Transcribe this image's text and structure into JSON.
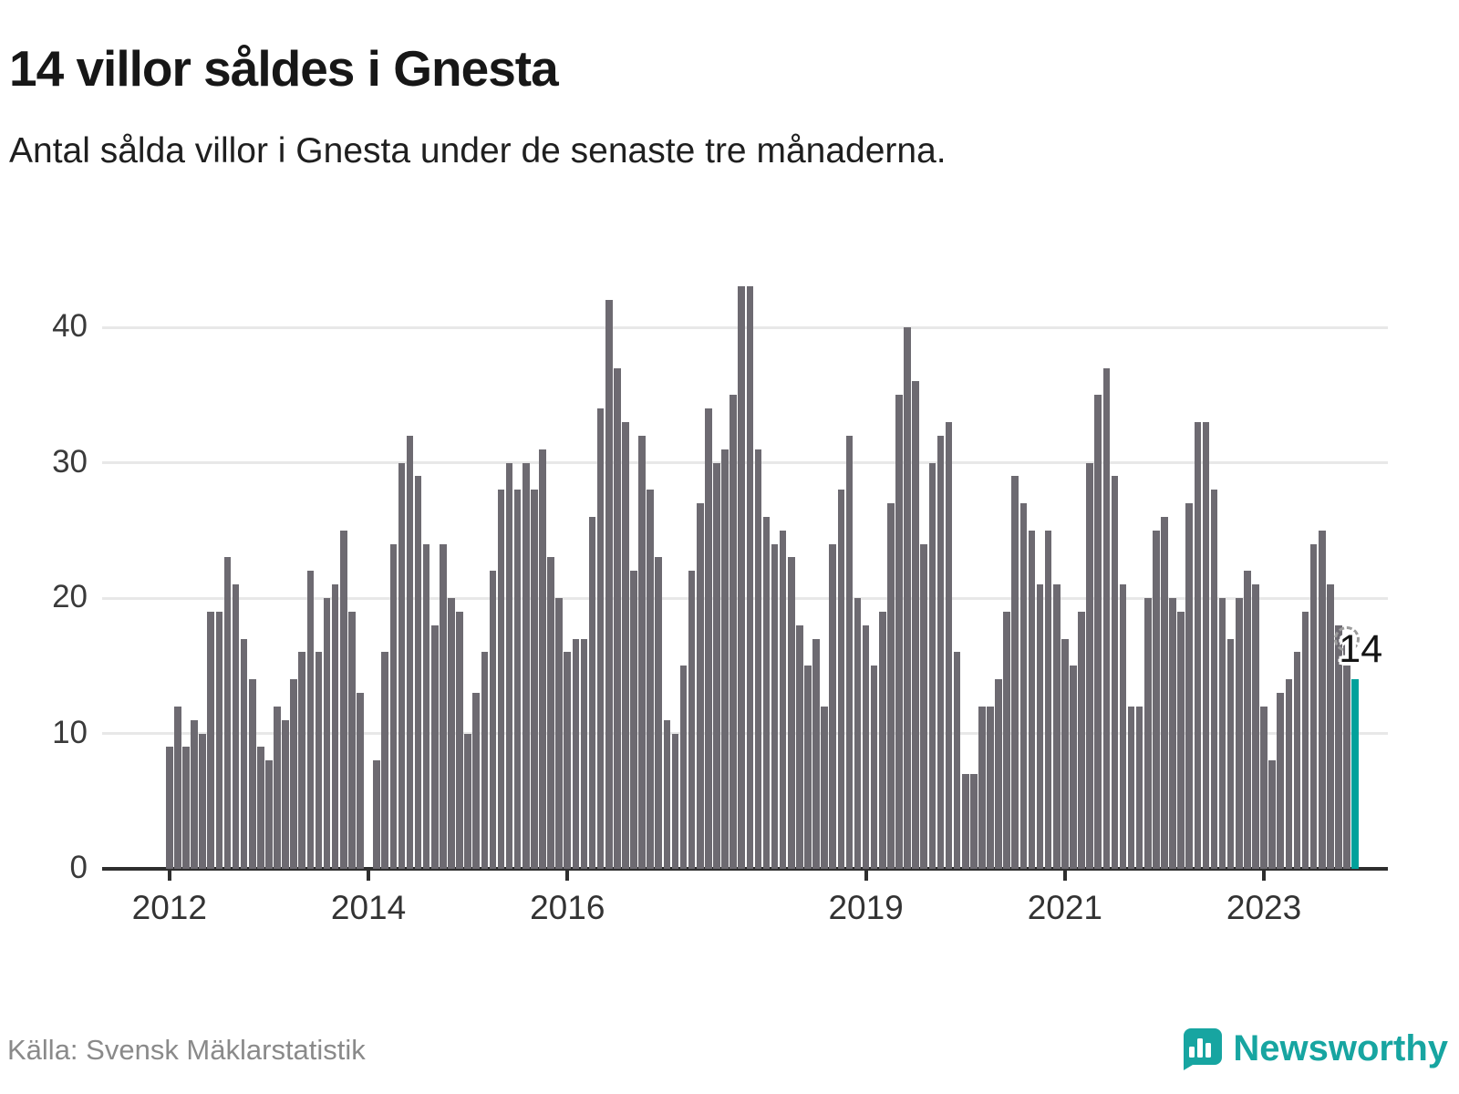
{
  "header": {
    "title": "14 villor såldes i Gnesta",
    "subtitle": "Antal sålda villor i Gnesta under de senaste tre månaderna."
  },
  "chart_data": {
    "type": "bar",
    "title": "14 villor såldes i Gnesta",
    "xlabel": "",
    "ylabel": "",
    "grid": "horizontal",
    "ylim": [
      0,
      45
    ],
    "y_ticks": [
      0,
      10,
      20,
      30,
      40
    ],
    "x_tick_labels": [
      "2012",
      "2014",
      "2016",
      "2019",
      "2021",
      "2023"
    ],
    "x_tick_indices": [
      0,
      24,
      48,
      84,
      108,
      132
    ],
    "values": [
      9,
      12,
      9,
      11,
      10,
      19,
      19,
      23,
      21,
      17,
      14,
      9,
      8,
      12,
      11,
      14,
      16,
      22,
      16,
      20,
      21,
      25,
      19,
      13,
      0,
      8,
      16,
      24,
      30,
      32,
      29,
      24,
      18,
      24,
      20,
      19,
      10,
      13,
      16,
      22,
      28,
      30,
      28,
      30,
      28,
      31,
      23,
      20,
      16,
      17,
      17,
      26,
      34,
      42,
      37,
      33,
      22,
      32,
      28,
      23,
      11,
      10,
      15,
      22,
      27,
      34,
      30,
      31,
      35,
      43,
      43,
      31,
      26,
      24,
      25,
      23,
      18,
      15,
      17,
      12,
      24,
      28,
      32,
      20,
      18,
      15,
      19,
      27,
      35,
      40,
      36,
      24,
      30,
      32,
      33,
      16,
      7,
      7,
      12,
      12,
      14,
      19,
      29,
      27,
      25,
      21,
      25,
      21,
      17,
      15,
      19,
      30,
      35,
      37,
      29,
      21,
      12,
      12,
      20,
      25,
      26,
      20,
      19,
      27,
      33,
      33,
      28,
      20,
      17,
      20,
      22,
      21,
      12,
      8,
      13,
      14,
      16,
      19,
      24,
      25,
      21,
      18,
      17,
      14
    ],
    "bar_color": "#6d6a71",
    "highlight": {
      "index": 143,
      "value": 14,
      "color": "#00a19b",
      "label": "14"
    },
    "marker": {
      "index": 142,
      "style": "dashed-circle"
    }
  },
  "footer": {
    "source": "Källa: Svensk Mäklarstatistik",
    "brand": "Newsworthy",
    "brand_color": "#17a5a1"
  }
}
